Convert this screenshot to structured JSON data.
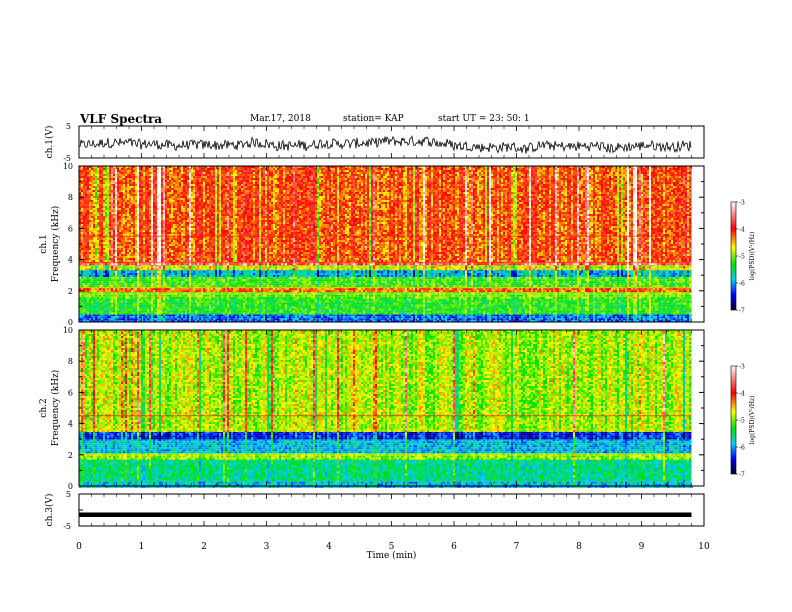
{
  "header": {
    "title": "VLF Spectra",
    "date": "Mar.17, 2018",
    "station": "station= KAP",
    "start": "start  UT =   23: 50: 1"
  },
  "chart_data": [
    {
      "type": "line",
      "ylabel": "ch.1(V)",
      "xlim": [
        0,
        10
      ],
      "ylim": [
        -5,
        5
      ],
      "yticks": [
        "5",
        "-5"
      ],
      "description_values": "noisy waveform fluctuating roughly between -4 and 2 V"
    },
    {
      "type": "heatmap",
      "ylabel": "ch.1\nFrequency (kHz)",
      "ylabel_top": "ch.1",
      "ylabel_bottom": "Frequency  (kHz)",
      "xlim": [
        0,
        10
      ],
      "ylim": [
        0,
        10
      ],
      "yticks": [
        "0",
        "2",
        "4",
        "6",
        "8",
        "10"
      ],
      "data_end_min": 9.8,
      "colorbar": {
        "label": "log(PSD)(V²/Hz)",
        "range": [
          -7,
          -3
        ],
        "ticks": [
          "-3",
          "-4",
          "-5",
          "-6",
          "-7"
        ]
      },
      "bands": [
        {
          "from": 0.0,
          "to": 0.5,
          "level": -6.2
        },
        {
          "from": 0.5,
          "to": 1.5,
          "level": -5.3
        },
        {
          "from": 1.5,
          "to": 2.0,
          "level": -5.1
        },
        {
          "from": 2.0,
          "to": 2.3,
          "level": -4.3
        },
        {
          "from": 2.3,
          "to": 3.0,
          "level": -5.2
        },
        {
          "from": 3.0,
          "to": 3.4,
          "level": -5.9
        },
        {
          "from": 3.4,
          "to": 3.7,
          "level": -4.8
        },
        {
          "from": 3.7,
          "to": 3.9,
          "level": -3.6
        },
        {
          "from": 3.9,
          "to": 10.0,
          "level": -4.2
        }
      ],
      "lines_khz": [
        5.5,
        3.8,
        2.2,
        1.8
      ]
    },
    {
      "type": "heatmap",
      "ylabel_top": "ch.2",
      "ylabel_bottom": "Frequency  (kHz)",
      "xlim": [
        0,
        10
      ],
      "ylim": [
        0,
        10
      ],
      "yticks": [
        "0",
        "2",
        "4",
        "6",
        "8",
        "10"
      ],
      "data_end_min": 9.8,
      "colorbar": {
        "label": "log(PSD)(V²/Hz)",
        "range": [
          -7,
          -3
        ],
        "ticks": [
          "-3",
          "-4",
          "-5",
          "-6",
          "-7"
        ]
      },
      "bands": [
        {
          "from": 0.0,
          "to": 0.4,
          "level": -5.9
        },
        {
          "from": 0.4,
          "to": 1.7,
          "level": -5.6
        },
        {
          "from": 1.7,
          "to": 2.2,
          "level": -5.0
        },
        {
          "from": 2.2,
          "to": 3.0,
          "level": -5.9
        },
        {
          "from": 3.0,
          "to": 3.5,
          "level": -6.4
        },
        {
          "from": 3.5,
          "to": 10.0,
          "level": -4.9
        }
      ],
      "lines_khz": [
        4.5,
        3.6,
        2.0
      ]
    },
    {
      "type": "line",
      "ylabel": "ch.3(V)",
      "xlim": [
        0,
        10
      ],
      "ylim": [
        -5,
        5
      ],
      "yticks": [
        "5",
        "-5"
      ],
      "xlabel": "Time  (min)",
      "xticks": [
        "0",
        "1",
        "2",
        "3",
        "4",
        "5",
        "6",
        "7",
        "8",
        "9",
        "10"
      ],
      "constant_value": -1.5
    }
  ]
}
